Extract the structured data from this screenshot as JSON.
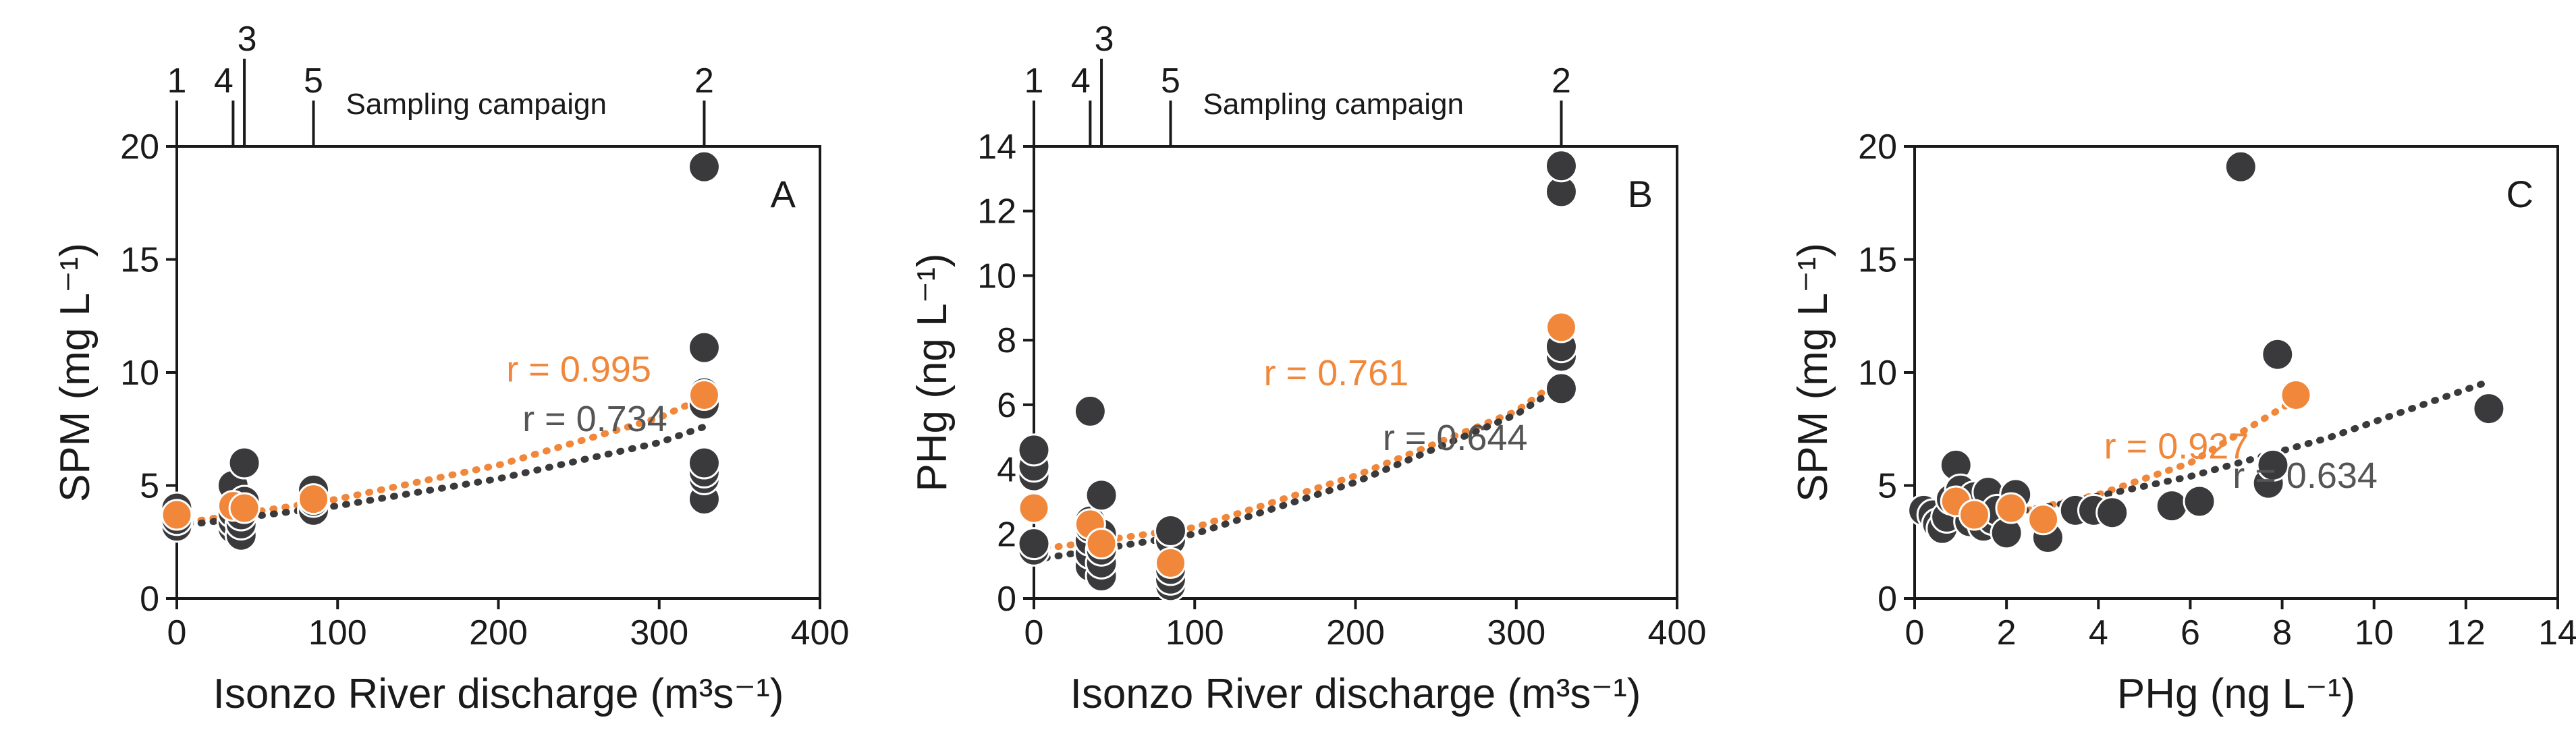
{
  "colors": {
    "dark": "#3a3a3c",
    "orange": "#f0873a",
    "axis": "#1a1a1a"
  },
  "chart_data": [
    {
      "type": "scatter",
      "panel": "A",
      "xlabel": "Isonzo River discharge (m³s⁻¹)",
      "ylabel": "SPM (mg L⁻¹)",
      "xlim": [
        0,
        400
      ],
      "ylim": [
        0,
        20
      ],
      "xticks": [
        0,
        100,
        200,
        300,
        400
      ],
      "yticks": [
        0,
        5,
        10,
        15,
        20
      ],
      "top_axis": {
        "title": "Sampling campaign",
        "ticks": [
          {
            "label": "1",
            "x": 0
          },
          {
            "label": "4",
            "x": 35
          },
          {
            "label": "3",
            "x": 42
          },
          {
            "label": "5",
            "x": 85
          },
          {
            "label": "2",
            "x": 328
          }
        ]
      },
      "series": [
        {
          "name": "samples",
          "color": "dark",
          "points": [
            [
              0,
              3.2
            ],
            [
              0,
              3.5
            ],
            [
              0,
              3.9
            ],
            [
              0,
              4.0
            ],
            [
              35,
              3.1
            ],
            [
              35,
              3.4
            ],
            [
              35,
              3.8
            ],
            [
              35,
              4.2
            ],
            [
              35,
              5.0
            ],
            [
              40,
              2.8
            ],
            [
              40,
              3.3
            ],
            [
              40,
              3.7
            ],
            [
              42,
              4.3
            ],
            [
              42,
              6.0
            ],
            [
              85,
              3.9
            ],
            [
              85,
              4.3
            ],
            [
              85,
              4.6
            ],
            [
              85,
              4.8
            ],
            [
              328,
              4.4
            ],
            [
              328,
              5.3
            ],
            [
              328,
              5.6
            ],
            [
              328,
              6.0
            ],
            [
              328,
              8.6
            ],
            [
              328,
              9.1
            ],
            [
              328,
              11.1
            ],
            [
              328,
              19.1
            ]
          ]
        },
        {
          "name": "campaign means",
          "color": "orange",
          "points": [
            [
              0,
              3.7
            ],
            [
              35,
              4.1
            ],
            [
              42,
              4.0
            ],
            [
              85,
              4.4
            ],
            [
              328,
              9.0
            ]
          ]
        }
      ],
      "trendlines": [
        {
          "color": "orange",
          "r_label": "r = 0.995",
          "points": [
            [
              0,
              3.3
            ],
            [
              100,
              4.4
            ],
            [
              200,
              5.9
            ],
            [
              300,
              8.0
            ],
            [
              328,
              8.9
            ]
          ]
        },
        {
          "color": "dark",
          "r_label": "r = 0.734",
          "points": [
            [
              0,
              3.2
            ],
            [
              100,
              4.1
            ],
            [
              200,
              5.3
            ],
            [
              300,
              6.9
            ],
            [
              328,
              7.6
            ]
          ]
        }
      ],
      "r_positions": [
        [
          250,
          9.6
        ],
        [
          260,
          7.4
        ]
      ]
    },
    {
      "type": "scatter",
      "panel": "B",
      "xlabel": "Isonzo River discharge (m³s⁻¹)",
      "ylabel": "PHg (ng L⁻¹)",
      "xlim": [
        0,
        400
      ],
      "ylim": [
        0,
        14
      ],
      "xticks": [
        0,
        100,
        200,
        300,
        400
      ],
      "yticks": [
        0,
        2,
        4,
        6,
        8,
        10,
        12,
        14
      ],
      "top_axis": {
        "title": "Sampling campaign",
        "ticks": [
          {
            "label": "1",
            "x": 0
          },
          {
            "label": "4",
            "x": 35
          },
          {
            "label": "3",
            "x": 42
          },
          {
            "label": "5",
            "x": 85
          },
          {
            "label": "2",
            "x": 328
          }
        ]
      },
      "series": [
        {
          "name": "samples",
          "color": "dark",
          "points": [
            [
              0,
              1.5
            ],
            [
              0,
              1.7
            ],
            [
              0,
              3.8
            ],
            [
              0,
              4.1
            ],
            [
              0,
              4.6
            ],
            [
              35,
              1.0
            ],
            [
              35,
              1.4
            ],
            [
              35,
              1.8
            ],
            [
              35,
              2.2
            ],
            [
              35,
              2.4
            ],
            [
              35,
              5.8
            ],
            [
              42,
              0.7
            ],
            [
              42,
              1.1
            ],
            [
              42,
              1.5
            ],
            [
              42,
              2.0
            ],
            [
              42,
              3.2
            ],
            [
              85,
              0.4
            ],
            [
              85,
              0.6
            ],
            [
              85,
              0.9
            ],
            [
              85,
              1.8
            ],
            [
              85,
              2.1
            ],
            [
              328,
              6.5
            ],
            [
              328,
              7.5
            ],
            [
              328,
              7.8
            ],
            [
              328,
              12.6
            ],
            [
              328,
              13.4
            ]
          ]
        },
        {
          "name": "campaign means",
          "color": "orange",
          "points": [
            [
              0,
              2.8
            ],
            [
              35,
              2.3
            ],
            [
              42,
              1.7
            ],
            [
              85,
              1.1
            ],
            [
              328,
              8.4
            ]
          ]
        }
      ],
      "trendlines": [
        {
          "color": "orange",
          "r_label": "r = 0.761",
          "points": [
            [
              0,
              1.5
            ],
            [
              100,
              2.2
            ],
            [
              200,
              3.8
            ],
            [
              300,
              5.8
            ],
            [
              328,
              6.8
            ]
          ]
        },
        {
          "color": "dark",
          "r_label": "r = 0.644",
          "points": [
            [
              0,
              1.2
            ],
            [
              100,
              2.0
            ],
            [
              200,
              3.6
            ],
            [
              300,
              5.7
            ],
            [
              328,
              6.6
            ]
          ]
        }
      ],
      "r_positions": [
        [
          188,
          6.6
        ],
        [
          262,
          4.6
        ]
      ]
    },
    {
      "type": "scatter",
      "panel": "C",
      "xlabel": "PHg (ng L⁻¹)",
      "ylabel": "SPM (mg L⁻¹)",
      "xlim": [
        0,
        14
      ],
      "ylim": [
        0,
        20
      ],
      "xticks": [
        0,
        2,
        4,
        6,
        8,
        10,
        12,
        14
      ],
      "yticks": [
        0,
        5,
        10,
        15,
        20
      ],
      "top_axis": null,
      "series": [
        {
          "name": "samples",
          "color": "dark",
          "points": [
            [
              0.2,
              3.9
            ],
            [
              0.4,
              3.7
            ],
            [
              0.5,
              3.3
            ],
            [
              0.6,
              3.1
            ],
            [
              0.7,
              3.6
            ],
            [
              0.8,
              4.4
            ],
            [
              0.9,
              5.9
            ],
            [
              1.0,
              4.8
            ],
            [
              1.1,
              4.1
            ],
            [
              1.2,
              3.4
            ],
            [
              1.3,
              4.5
            ],
            [
              1.5,
              3.2
            ],
            [
              1.6,
              4.7
            ],
            [
              1.7,
              3.5
            ],
            [
              1.8,
              3.9
            ],
            [
              2.0,
              2.9
            ],
            [
              2.2,
              4.6
            ],
            [
              2.9,
              2.7
            ],
            [
              3.5,
              3.9
            ],
            [
              3.9,
              3.9
            ],
            [
              4.3,
              3.8
            ],
            [
              5.6,
              4.1
            ],
            [
              6.2,
              4.3
            ],
            [
              7.1,
              19.1
            ],
            [
              7.7,
              5.1
            ],
            [
              7.8,
              5.9
            ],
            [
              7.9,
              10.8
            ],
            [
              12.5,
              8.4
            ]
          ]
        },
        {
          "name": "campaign means",
          "color": "orange",
          "points": [
            [
              0.9,
              4.3
            ],
            [
              1.3,
              3.7
            ],
            [
              2.1,
              4.0
            ],
            [
              2.8,
              3.5
            ],
            [
              8.3,
              9.0
            ]
          ]
        }
      ],
      "trendlines": [
        {
          "color": "orange",
          "r_label": "r = 0.927",
          "points": [
            [
              0.9,
              3.6
            ],
            [
              2,
              3.7
            ],
            [
              4,
              4.6
            ],
            [
              6,
              6.0
            ],
            [
              8.3,
              8.8
            ]
          ]
        },
        {
          "color": "dark",
          "r_label": "r = 0.634",
          "points": [
            [
              0.3,
              3.2
            ],
            [
              3,
              4.1
            ],
            [
              6,
              5.4
            ],
            [
              9,
              7.1
            ],
            [
              12.5,
              9.6
            ]
          ]
        }
      ],
      "r_positions": [
        [
          5.7,
          6.2
        ],
        [
          8.5,
          4.9
        ]
      ]
    }
  ]
}
